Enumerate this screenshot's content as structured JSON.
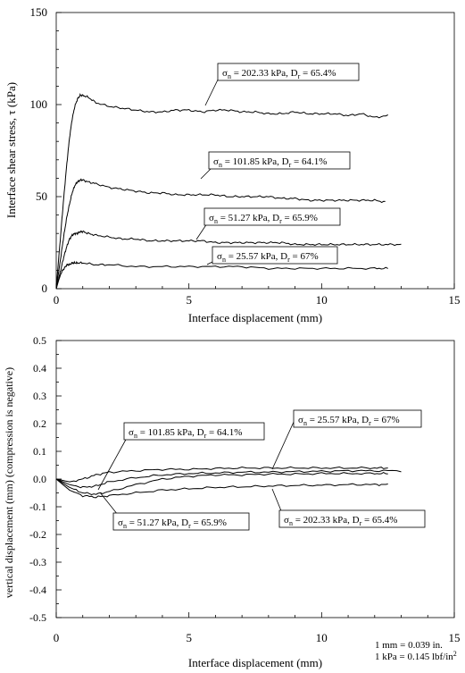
{
  "chart_data": [
    {
      "type": "line",
      "xlabel": "Interface displacement (mm)",
      "ylabel": "Interface shear stress, τ (kPa)",
      "xlim": [
        0,
        15
      ],
      "ylim": [
        0,
        150
      ],
      "xticks": [
        "0",
        "5",
        "10",
        "15"
      ],
      "yticks": [
        "0",
        "50",
        "100",
        "150"
      ],
      "grid": false,
      "series": [
        {
          "name": "σn = 202.33 kPa, Dr = 65.4%",
          "label": {
            "sigma": "σ",
            "sub1": "n",
            "mid": " = 202.33 kPa, D",
            "sub2": "r",
            "end": " = 65.4%"
          },
          "x": [
            0,
            0.1,
            0.2,
            0.3,
            0.4,
            0.5,
            0.6,
            0.7,
            0.8,
            0.9,
            1.0,
            1.2,
            1.5,
            2.0,
            2.5,
            3.0,
            3.5,
            4.0,
            4.5,
            5.0,
            5.5,
            6.0,
            6.5,
            7.0,
            7.5,
            8.0,
            8.5,
            9.0,
            9.5,
            10.0,
            10.5,
            11.0,
            11.5,
            12.0,
            12.5
          ],
          "y": [
            0,
            18,
            35,
            52,
            68,
            82,
            92,
            99,
            103,
            105,
            105,
            104,
            101,
            99,
            98,
            97,
            96,
            96,
            97,
            97,
            96,
            97,
            97,
            96,
            96,
            95,
            95,
            96,
            95,
            95,
            95,
            94,
            95,
            93,
            94
          ]
        },
        {
          "name": "σn = 101.85 kPa, Dr = 64.1%",
          "label": {
            "sigma": "σ",
            "sub1": "n",
            "mid": " = 101.85 kPa, D",
            "sub2": "r",
            "end": " = 64.1%"
          },
          "x": [
            0,
            0.1,
            0.2,
            0.3,
            0.4,
            0.5,
            0.6,
            0.7,
            0.8,
            0.9,
            1.0,
            1.2,
            1.5,
            2.0,
            2.5,
            3.0,
            3.5,
            4.0,
            4.5,
            5.0,
            5.5,
            6.0,
            6.5,
            7.0,
            7.5,
            8.0,
            8.5,
            9.0,
            9.5,
            10.0,
            10.5,
            11.0,
            11.5,
            12.0,
            12.4
          ],
          "y": [
            0,
            10,
            20,
            30,
            39,
            46,
            52,
            56,
            58,
            59,
            59,
            58,
            57,
            55,
            54,
            53,
            52,
            52,
            51,
            51,
            51,
            51,
            50,
            50,
            50,
            50,
            49,
            49,
            48,
            48,
            48,
            48,
            48,
            48,
            47
          ]
        },
        {
          "name": "σn = 51.27 kPa, Dr = 65.9%",
          "label": {
            "sigma": "σ",
            "sub1": "n",
            "mid": " = 51.27 kPa, D",
            "sub2": "r",
            "end": " = 65.9%"
          },
          "x": [
            0,
            0.1,
            0.2,
            0.3,
            0.4,
            0.5,
            0.6,
            0.7,
            0.8,
            0.9,
            1.0,
            1.2,
            1.5,
            2.0,
            2.5,
            3.0,
            3.5,
            4.0,
            4.5,
            5.0,
            5.5,
            6.0,
            6.5,
            7.0,
            7.5,
            8.0,
            8.5,
            9.0,
            9.5,
            10.0,
            10.5,
            11.0,
            11.5,
            12.0,
            12.5,
            13.0
          ],
          "y": [
            0,
            6,
            12,
            18,
            23,
            27,
            29,
            30,
            30,
            31,
            31,
            30,
            29,
            28,
            27,
            27,
            26,
            26,
            26,
            26,
            26,
            25,
            25,
            25,
            25,
            25,
            25,
            24,
            24,
            24,
            24,
            24,
            24,
            24,
            24,
            24
          ]
        },
        {
          "name": "σn = 25.57 kPa, Dr = 67%",
          "label": {
            "sigma": "σ",
            "sub1": "n",
            "mid": " = 25.57 kPa, D",
            "sub2": "r",
            "end": " = 67%"
          },
          "x": [
            0,
            0.1,
            0.2,
            0.3,
            0.4,
            0.5,
            0.6,
            0.7,
            0.8,
            1.0,
            1.5,
            2.0,
            3.0,
            4.0,
            5.0,
            6.0,
            7.0,
            8.0,
            9.0,
            10.0,
            11.0,
            12.0,
            12.5
          ],
          "y": [
            0,
            5,
            9,
            11,
            13,
            13,
            14,
            14,
            14,
            14,
            13,
            13,
            12,
            12,
            12,
            12,
            12,
            11,
            11,
            11,
            11,
            11,
            11
          ]
        }
      ]
    },
    {
      "type": "line",
      "xlabel": "Interface displacement (mm)",
      "ylabel": "vertical displacement (mm) (compression is negative)",
      "xlim": [
        0,
        15
      ],
      "ylim": [
        -0.5,
        0.5
      ],
      "xticks": [
        "0",
        "5",
        "10",
        "15"
      ],
      "yticks": [
        "-0.5",
        "-0.4",
        "-0.3",
        "-0.2",
        "-0.1",
        "0.0",
        "0.1",
        "0.2",
        "0.3",
        "0.4",
        "0.5"
      ],
      "grid": false,
      "series": [
        {
          "name": "σn = 25.57 kPa, Dr = 67%",
          "label": {
            "sigma": "σ",
            "sub1": "n",
            "mid": " = 25.57 kPa, D",
            "sub2": "r",
            "end": " = 67%"
          },
          "x": [
            0,
            0.5,
            1.0,
            1.5,
            2.0,
            3.0,
            4.0,
            5.0,
            6.0,
            7.0,
            8.0,
            9.0,
            10.0,
            11.0,
            12.0,
            12.5
          ],
          "y": [
            0,
            -0.01,
            0.0,
            0.015,
            0.025,
            0.03,
            0.035,
            0.035,
            0.038,
            0.04,
            0.04,
            0.04,
            0.04,
            0.04,
            0.04,
            0.04
          ]
        },
        {
          "name": "σn = 101.85 kPa, Dr = 64.1%",
          "label": {
            "sigma": "σ",
            "sub1": "n",
            "mid": " = 101.85 kPa, D",
            "sub2": "r",
            "end": " = 64.1%"
          },
          "x": [
            0,
            0.5,
            1.0,
            1.5,
            2.0,
            3.0,
            4.0,
            5.0,
            6.0,
            7.0,
            8.0,
            9.0,
            10.0,
            11.0,
            12.0,
            13.0
          ],
          "y": [
            0,
            -0.02,
            -0.03,
            -0.025,
            -0.01,
            0.005,
            0.015,
            0.02,
            0.022,
            0.025,
            0.025,
            0.027,
            0.028,
            0.03,
            0.03,
            0.03
          ]
        },
        {
          "name": "σn = 51.27 kPa, Dr = 65.9%",
          "label": {
            "sigma": "σ",
            "sub1": "n",
            "mid": " = 51.27 kPa, D",
            "sub2": "r",
            "end": " = 65.9%"
          },
          "x": [
            0,
            0.5,
            1.0,
            1.5,
            2.0,
            3.0,
            4.0,
            5.0,
            6.0,
            7.0,
            8.0,
            9.0,
            10.0,
            11.0,
            12.0,
            12.5
          ],
          "y": [
            0,
            -0.03,
            -0.05,
            -0.055,
            -0.045,
            -0.02,
            0.0,
            0.01,
            0.015,
            0.015,
            0.018,
            0.018,
            0.02,
            0.02,
            0.02,
            0.02
          ]
        },
        {
          "name": "σn = 202.33 kPa, Dr = 65.4%",
          "label": {
            "sigma": "σ",
            "sub1": "n",
            "mid": " = 202.33 kPa, D",
            "sub2": "r",
            "end": " = 65.4%"
          },
          "x": [
            0,
            0.5,
            1.0,
            1.5,
            2.0,
            3.0,
            4.0,
            5.0,
            6.0,
            7.0,
            8.0,
            9.0,
            10.0,
            11.0,
            12.0,
            12.5
          ],
          "y": [
            0,
            -0.04,
            -0.06,
            -0.065,
            -0.06,
            -0.05,
            -0.04,
            -0.035,
            -0.03,
            -0.028,
            -0.025,
            -0.023,
            -0.022,
            -0.02,
            -0.02,
            -0.02
          ]
        }
      ]
    }
  ],
  "conversion": {
    "line1": "1 mm = 0.039 in.",
    "line2": "1 kPa = 0.145 lbf/in",
    "line2_sup": "2"
  }
}
